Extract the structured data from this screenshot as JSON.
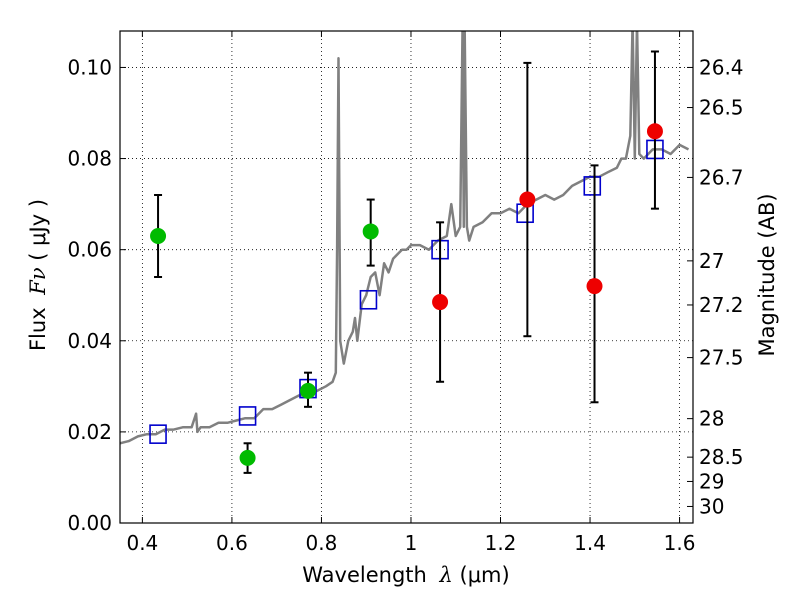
{
  "chart_data": {
    "type": "scatter",
    "xlabel": {
      "prefix": "Wavelength ",
      "symbol": "λ",
      "unit": " (μm)"
    },
    "ylabel": {
      "prefix": "Flux ",
      "symbol": "Fν",
      "unit": " ( μJy )"
    },
    "y2label": "Magnitude (AB)",
    "xlim": [
      0.35,
      1.63
    ],
    "ylim": [
      0.0,
      0.108
    ],
    "grid": true,
    "x_ticks": [
      0.4,
      0.6,
      0.8,
      1.0,
      1.2,
      1.4,
      1.6
    ],
    "x_tick_labels": [
      "0.4",
      "0.6",
      "0.8",
      "1",
      "1.2",
      "1.4",
      "1.6"
    ],
    "y_ticks": [
      0.0,
      0.02,
      0.04,
      0.06,
      0.08,
      0.1
    ],
    "y_tick_labels": [
      "0.00",
      "0.02",
      "0.04",
      "0.06",
      "0.08",
      "0.10"
    ],
    "y2_ticks": [
      {
        "label": "26.4",
        "mag": 26.4
      },
      {
        "label": "26.5",
        "mag": 26.5
      },
      {
        "label": "26.7",
        "mag": 26.7
      },
      {
        "label": "27",
        "mag": 27.0
      },
      {
        "label": "27.2",
        "mag": 27.2
      },
      {
        "label": "27.5",
        "mag": 27.5
      },
      {
        "label": "28",
        "mag": 28.0
      },
      {
        "label": "28.5",
        "mag": 28.5
      },
      {
        "label": "29",
        "mag": 29.0
      },
      {
        "label": "30",
        "mag": 30.0
      }
    ],
    "series": [
      {
        "kind": "line",
        "color": "#808080",
        "x": [
          0.35,
          0.37,
          0.39,
          0.41,
          0.43,
          0.45,
          0.47,
          0.49,
          0.51,
          0.52,
          0.523,
          0.53,
          0.55,
          0.57,
          0.59,
          0.61,
          0.63,
          0.65,
          0.67,
          0.69,
          0.71,
          0.73,
          0.75,
          0.77,
          0.79,
          0.81,
          0.825,
          0.832,
          0.835,
          0.838,
          0.842,
          0.85,
          0.86,
          0.87,
          0.875,
          0.88,
          0.89,
          0.9,
          0.91,
          0.92,
          0.93,
          0.94,
          0.95,
          0.96,
          0.97,
          0.98,
          0.99,
          1.0,
          1.02,
          1.04,
          1.06,
          1.08,
          1.09,
          1.1,
          1.11,
          1.115,
          1.118,
          1.12,
          1.125,
          1.13,
          1.14,
          1.16,
          1.18,
          1.2,
          1.22,
          1.24,
          1.26,
          1.28,
          1.3,
          1.32,
          1.34,
          1.36,
          1.38,
          1.4,
          1.42,
          1.44,
          1.46,
          1.47,
          1.48,
          1.49,
          1.495,
          1.5,
          1.505,
          1.51,
          1.52,
          1.54,
          1.56,
          1.58,
          1.6,
          1.62
        ],
        "y": [
          0.0175,
          0.018,
          0.019,
          0.0195,
          0.0195,
          0.0205,
          0.0205,
          0.021,
          0.021,
          0.024,
          0.02,
          0.021,
          0.021,
          0.022,
          0.022,
          0.0225,
          0.023,
          0.023,
          0.025,
          0.025,
          0.026,
          0.027,
          0.028,
          0.028,
          0.029,
          0.03,
          0.031,
          0.033,
          0.06,
          0.102,
          0.04,
          0.035,
          0.04,
          0.042,
          0.045,
          0.04,
          0.048,
          0.05,
          0.054,
          0.055,
          0.05,
          0.057,
          0.055,
          0.058,
          0.059,
          0.06,
          0.06,
          0.061,
          0.061,
          0.06,
          0.062,
          0.063,
          0.07,
          0.063,
          0.065,
          0.108,
          0.065,
          0.108,
          0.065,
          0.062,
          0.065,
          0.066,
          0.068,
          0.068,
          0.069,
          0.068,
          0.07,
          0.071,
          0.072,
          0.071,
          0.072,
          0.074,
          0.075,
          0.076,
          0.076,
          0.077,
          0.078,
          0.08,
          0.08,
          0.085,
          0.11,
          0.08,
          0.11,
          0.081,
          0.08,
          0.082,
          0.082,
          0.081,
          0.083,
          0.082
        ]
      },
      {
        "kind": "squares",
        "color": "#0000cc",
        "x": [
          0.435,
          0.635,
          0.77,
          0.905,
          1.065,
          1.255,
          1.405,
          1.545
        ],
        "y": [
          0.0195,
          0.0235,
          0.0295,
          0.049,
          0.06,
          0.068,
          0.074,
          0.082
        ]
      },
      {
        "kind": "errorbar",
        "color": "#00bb00",
        "x": [
          0.435,
          0.635,
          0.77,
          0.91
        ],
        "y": [
          0.063,
          0.0143,
          0.029,
          0.064
        ],
        "yerr_low": [
          0.054,
          0.011,
          0.0255,
          0.0565
        ],
        "yerr_high": [
          0.072,
          0.0175,
          0.033,
          0.071
        ]
      },
      {
        "kind": "errorbar",
        "color": "#ee0000",
        "x": [
          1.065,
          1.26,
          1.41,
          1.545
        ],
        "y": [
          0.0485,
          0.071,
          0.052,
          0.086
        ],
        "yerr_low": [
          0.031,
          0.041,
          0.0265,
          0.069
        ],
        "yerr_high": [
          0.066,
          0.101,
          0.0785,
          0.1035
        ]
      }
    ]
  }
}
